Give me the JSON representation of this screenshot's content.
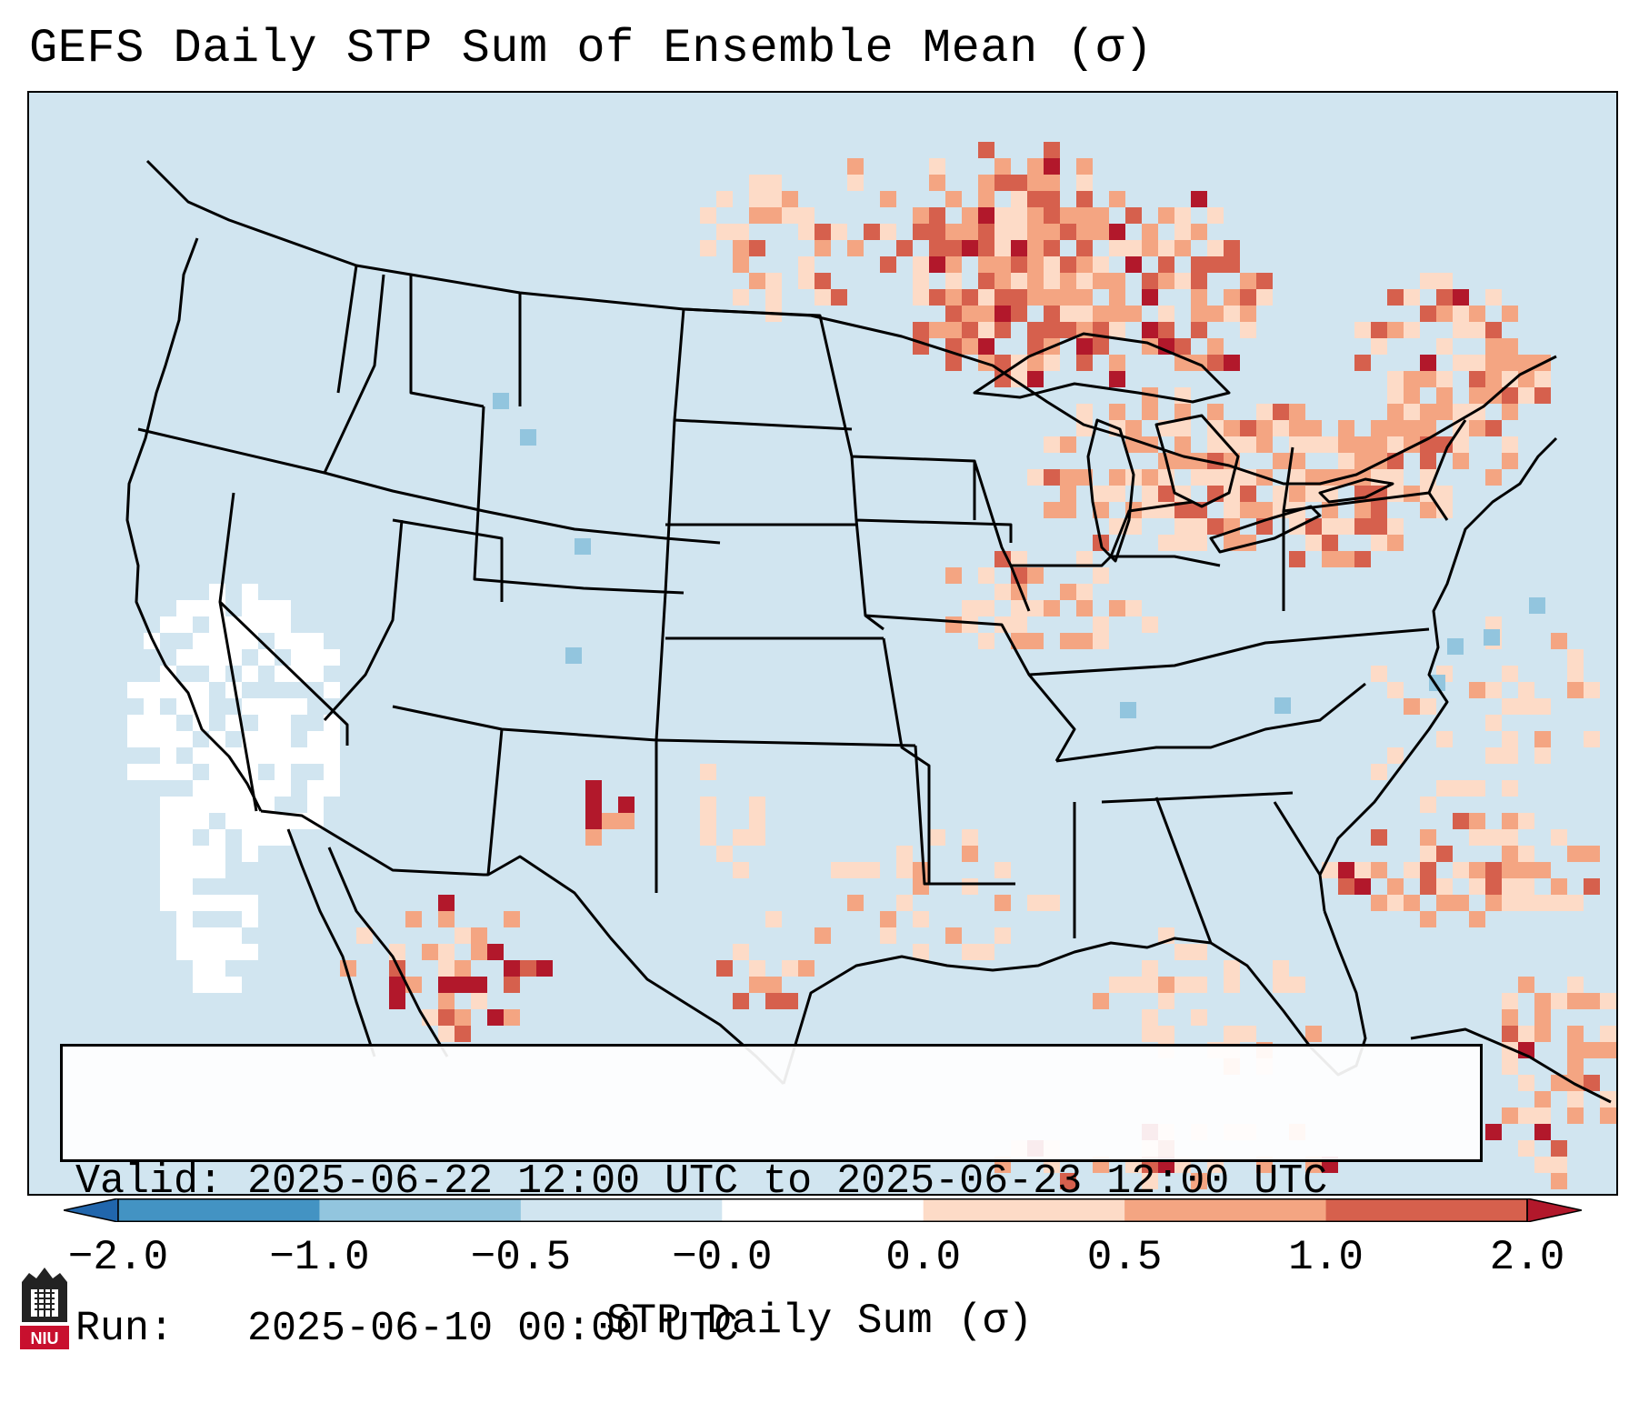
{
  "title": "GEFS Daily STP Sum of Ensemble Mean (σ)",
  "info": {
    "valid_label": "Valid:",
    "valid_value": "2025-06-22 12:00 UTC to 2025-06-23 12:00 UTC",
    "run_label": "Run:",
    "run_value": "2025-06-10 00:00 UTC"
  },
  "colorbar": {
    "label": "STP Daily Sum (σ)",
    "ticks": [
      "−2.0",
      "−1.0",
      "−0.5",
      "−0.0",
      "0.0",
      "0.5",
      "1.0",
      "2.0"
    ],
    "colors": [
      "#4393c3",
      "#92c5de",
      "#d1e5f0",
      "#ffffff",
      "#fddbc7",
      "#f4a582",
      "#d6604d"
    ],
    "extend_low_color": "#2166ac",
    "extend_high_color": "#b2182b"
  },
  "map": {
    "background_color": "#d1e5f0",
    "region": "Contiguous United States"
  },
  "logo": {
    "text": "NIU",
    "color": "#c8102e"
  }
}
